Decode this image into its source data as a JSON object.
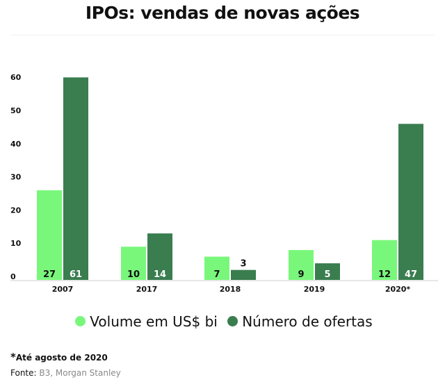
{
  "chart_data": {
    "type": "bar",
    "title": "IPOs: vendas de novas ações",
    "categories": [
      "2007",
      "2017",
      "2018",
      "2019",
      "2020*"
    ],
    "series": [
      {
        "name": "Volume em US$ bi",
        "color": "#79f77b",
        "values": [
          27,
          10,
          7,
          9,
          12
        ]
      },
      {
        "name": "Número de ofertas",
        "color": "#3a7d4f",
        "values": [
          61,
          14,
          3,
          5,
          47
        ]
      }
    ],
    "yticks": [
      "0",
      "10",
      "20",
      "30",
      "40",
      "50",
      "60"
    ],
    "ylim": [
      0,
      65
    ],
    "grid": false,
    "legend": "bottom",
    "xlabel": "",
    "ylabel": ""
  },
  "footnote": {
    "star": "*",
    "text": "Até agosto de 2020"
  },
  "source": {
    "label": "Fonte",
    "sep": ":",
    "text": " B3, Morgan Stanley"
  }
}
